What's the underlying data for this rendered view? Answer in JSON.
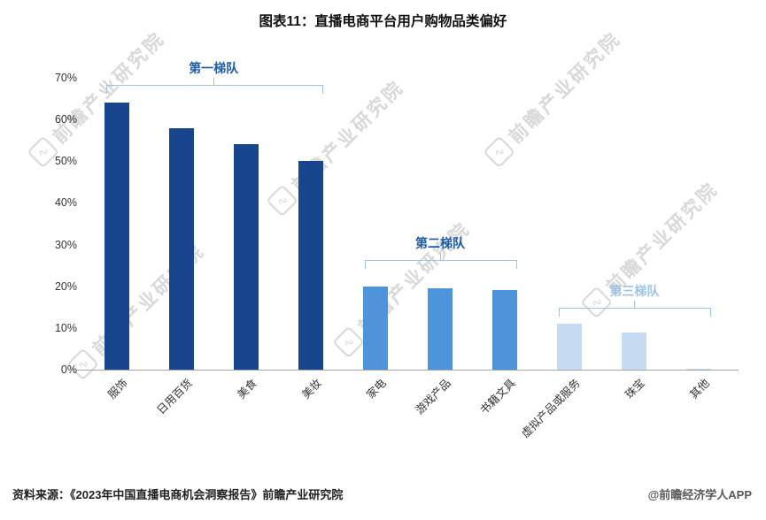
{
  "title": "图表11：直播电商平台用户购物品类偏好",
  "watermark": {
    "text": "前瞻产业研究院",
    "logo_glyph": "∿"
  },
  "footer": {
    "source": "资料来源：《2023年中国直播电商机会洞察报告》前瞻产业研究院",
    "credit": "@前瞻经济学人APP"
  },
  "chart_data": {
    "type": "bar",
    "title": "图表11：直播电商平台用户购物品类偏好",
    "categories": [
      "服饰",
      "日用百货",
      "美食",
      "美妆",
      "家电",
      "游戏产品",
      "书籍文具",
      "虚拟产品或服务",
      "珠宝",
      "其他"
    ],
    "values": [
      64,
      58,
      54,
      50,
      20,
      19.5,
      19,
      11,
      9,
      0.3
    ],
    "value_unit": "%",
    "ylim": [
      0,
      70
    ],
    "yticks": [
      "0%",
      "10%",
      "20%",
      "30%",
      "40%",
      "50%",
      "60%",
      "70%"
    ],
    "grid": false,
    "legend": "none",
    "colors": [
      "#17468F",
      "#17468F",
      "#17468F",
      "#17468F",
      "#4D94DB",
      "#4D94DB",
      "#4D94DB",
      "#C5DBF1",
      "#C5DBF1",
      "#C5DBF1"
    ],
    "tiers": [
      {
        "label": "第一梯队",
        "start": 0,
        "end": 3,
        "text_color": "#1D5CA8",
        "bracket_color": "#9CC3E6"
      },
      {
        "label": "第二梯队",
        "start": 4,
        "end": 6,
        "text_color": "#1D5CA8",
        "bracket_color": "#9CC3E6"
      },
      {
        "label": "第三梯队",
        "start": 7,
        "end": 9,
        "text_color": "#9CC3E6",
        "bracket_color": "#9CC3E6"
      }
    ]
  }
}
